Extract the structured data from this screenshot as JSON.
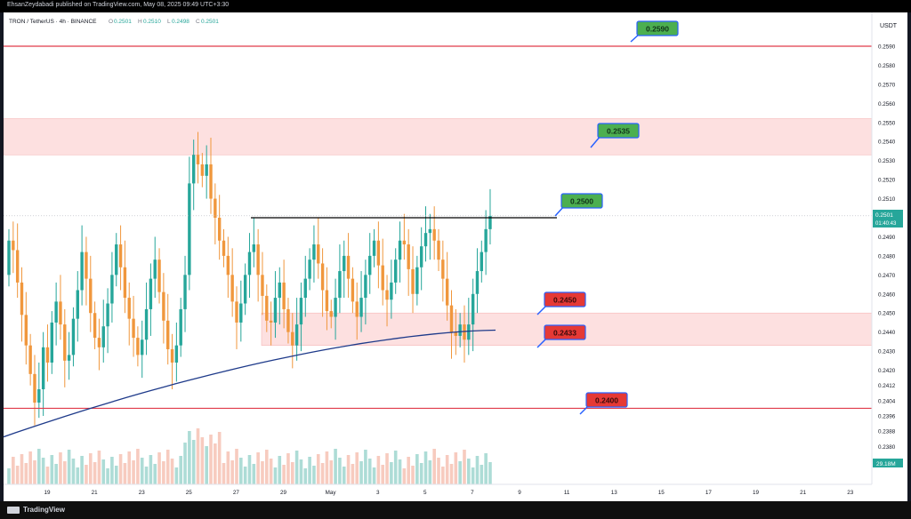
{
  "header": {
    "published": "EhsanZeydabadi published on TradingView.com, May 08, 2025 09:49 UTC+3:30",
    "symbol": "TRON / TetherUS · 4h · BINANCE",
    "ohlc": {
      "O": "0.2501",
      "H": "0.2510",
      "L": "0.2498",
      "C": "0.2501"
    }
  },
  "footer": {
    "brand": "TradingView"
  },
  "colors": {
    "up": "#26a69a",
    "down": "#f0973d",
    "ma": "#1e3a8a",
    "resistance": "#e03b4a",
    "zone": "#fde0e0",
    "label_green": "#4caf50",
    "label_red": "#e53935",
    "label_border": "#2962ff"
  },
  "chart_data": {
    "type": "candlestick",
    "title": "TRON / TetherUS · 4h · BINANCE",
    "currency": "USDT",
    "ylim": [
      0.2368,
      0.2602
    ],
    "y_ticks": [
      "0.2590",
      "0.2580",
      "0.2570",
      "0.2560",
      "0.2550",
      "0.2540",
      "0.2530",
      "0.2520",
      "0.2510",
      "0.2500",
      "0.2490",
      "0.2480",
      "0.2470",
      "0.2460",
      "0.2450",
      "0.2440",
      "0.2430",
      "0.2420",
      "0.2412",
      "0.2404",
      "0.2396",
      "0.2388",
      "0.2380",
      "0.2372"
    ],
    "x_ticks": [
      "19",
      "21",
      "23",
      "25",
      "27",
      "29",
      "May",
      "3",
      "5",
      "7",
      "9",
      "11",
      "13",
      "15",
      "17",
      "19",
      "21",
      "23"
    ],
    "last_price": "0.2501",
    "countdown": "01:40:43",
    "volume_label": "29.18M",
    "close_series": [
      0.2488,
      0.2483,
      0.2466,
      0.2449,
      0.2433,
      0.2418,
      0.2403,
      0.241,
      0.2432,
      0.2424,
      0.2445,
      0.2456,
      0.2444,
      0.2425,
      0.2428,
      0.2447,
      0.2462,
      0.2482,
      0.2468,
      0.245,
      0.2437,
      0.2432,
      0.2443,
      0.2455,
      0.247,
      0.2486,
      0.2474,
      0.2458,
      0.2447,
      0.2437,
      0.2428,
      0.2436,
      0.2452,
      0.2468,
      0.2478,
      0.2461,
      0.2446,
      0.2431,
      0.2424,
      0.2433,
      0.2452,
      0.247,
      0.2518,
      0.2533,
      0.2528,
      0.2522,
      0.2528,
      0.251,
      0.25,
      0.2488,
      0.248,
      0.247,
      0.2456,
      0.2445,
      0.2455,
      0.247,
      0.2482,
      0.2486,
      0.247,
      0.2459,
      0.2446,
      0.2445,
      0.2458,
      0.2466,
      0.2452,
      0.244,
      0.2433,
      0.2444,
      0.2458,
      0.2468,
      0.2478,
      0.2486,
      0.2476,
      0.2462,
      0.2451,
      0.2448,
      0.2458,
      0.2472,
      0.248,
      0.2468,
      0.2456,
      0.2448,
      0.2458,
      0.247,
      0.248,
      0.2488,
      0.2475,
      0.2462,
      0.2457,
      0.2466,
      0.2478,
      0.2488,
      0.2486,
      0.2473,
      0.246,
      0.2474,
      0.2485,
      0.2492,
      0.2494,
      0.2488,
      0.2478,
      0.2468,
      0.2454,
      0.244,
      0.2438,
      0.2444,
      0.2436,
      0.2444,
      0.246,
      0.2472,
      0.2482,
      0.2494,
      0.2501
    ],
    "ma": {
      "start": 0.2385,
      "end": 0.2441
    },
    "levels": [
      {
        "value": 0.259,
        "label": "0.2590",
        "kind": "resistance"
      },
      {
        "value": 0.25,
        "label": "0.2500",
        "kind": "neckline"
      },
      {
        "value": 0.24,
        "label": "0.2400",
        "kind": "support"
      }
    ],
    "zones": [
      {
        "from": 0.2533,
        "to": 0.2552
      },
      {
        "from": 0.2433,
        "to": 0.245
      }
    ],
    "labels": [
      {
        "text": "0.2590",
        "color": "green"
      },
      {
        "text": "0.2535",
        "color": "green"
      },
      {
        "text": "0.2500",
        "color": "green"
      },
      {
        "text": "0.2450",
        "color": "red"
      },
      {
        "text": "0.2433",
        "color": "red"
      },
      {
        "text": "0.2400",
        "color": "red"
      }
    ],
    "grid": false,
    "legend": "none"
  }
}
